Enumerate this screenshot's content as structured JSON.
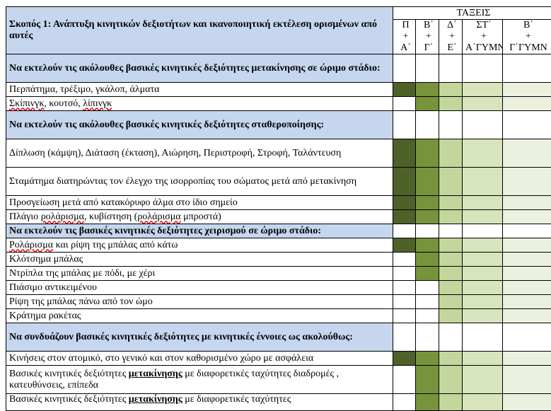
{
  "table": {
    "title": "Σκοπός 1: Ανάπτυξη κινητικών δεξιοτήτων και ικανοποιητική εκτέλεση ορισμένων από αυτές",
    "classes_header": "ΤΑΞΕΙΣ",
    "grades": [
      {
        "l1": "Π",
        "l2": "+",
        "l3": "Α΄"
      },
      {
        "l1": "Β΄",
        "l2": "+",
        "l3": "Γ΄"
      },
      {
        "l1": "Δ΄",
        "l2": "+",
        "l3": "Ε΄"
      },
      {
        "l1": "ΣΤ΄",
        "l2": "+",
        "l3": "Α΄ΓΥΜΝ"
      },
      {
        "l1": "Β΄",
        "l2": "+",
        "l3": "Γ΄ΓΥΜΝ"
      }
    ],
    "sections": [
      {
        "heading": "Να εκτελούν τις ακόλουθες βασικές κινητικές δεξιότητες μετακίνησης σε ώριμο στάδιο:"
      },
      {
        "heading": "Να εκτελούν τις ακόλουθες βασικές κινητικές δεξιότητες σταθεροποίησης:"
      },
      {
        "heading": "Να εκτελούν τις βασικές κινητικές δεξιότητες χειρισμού σε ώριμο στάδιο:"
      },
      {
        "heading": "Να συνδυάζουν βασικές κινητικές δεξιότητες με κινητικές έννοιες ως ακολούθως:"
      }
    ],
    "rows": [
      {
        "text": "Περπάτημα, τρέξιμο, γκάλοπ, άλματα",
        "shades": [
          1,
          1,
          1,
          1,
          1
        ]
      },
      {
        "text_a": "Σκίπινγκ",
        "text_b": ", κουτσό, ",
        "text_c": "λίπινγκ",
        "shades": [
          0,
          1,
          1,
          1,
          1
        ]
      },
      {
        "text": "Δίπλωση (κάμψη), Διάταση (έκταση), Αιώρηση, Περιστροφή,  Στροφή, Ταλάντευση",
        "shades": [
          1,
          1,
          1,
          1,
          1
        ]
      },
      {
        "text": "Σταμάτημα διατηρώντας τον έλεγχο της ισορροπίας του σώματος μετά από μετακίνηση",
        "shades": [
          1,
          1,
          1,
          1,
          1
        ]
      },
      {
        "text": "Προσγείωση μετά από κατακόρυφο άλμα στο ίδιο σημείο",
        "shades": [
          1,
          1,
          1,
          1,
          1
        ]
      },
      {
        "text_a": "Πλάγιο ",
        "text_b": "ρολάρισμα",
        "text_c": ", κυβίστηση (",
        "text_d": "ρολάρισμα",
        "text_e": " μπροστά)",
        "shades": [
          1,
          1,
          1,
          1,
          1
        ]
      },
      {
        "text_a": "Ρολάρισμα",
        "text_b": " και ρίψη της μπάλας από κάτω",
        "shades": [
          1,
          1,
          1,
          1,
          1
        ]
      },
      {
        "text": "Κλότσημα μπάλας",
        "shades": [
          0,
          1,
          1,
          1,
          1
        ]
      },
      {
        "text": "Ντρίπλα της μπάλας με πόδι, με χέρι",
        "shades": [
          0,
          1,
          1,
          1,
          1
        ]
      },
      {
        "text": "Πιάσιμο αντικειμένου",
        "shades": [
          0,
          0,
          1,
          1,
          1
        ]
      },
      {
        "text": "Ρίψη της μπάλας πάνω από τον ώμο",
        "shades": [
          0,
          0,
          1,
          1,
          1
        ]
      },
      {
        "text": "Κράτημα ρακέτας",
        "shades": [
          0,
          0,
          1,
          1,
          1
        ]
      },
      {
        "text": "Κινήσεις στον ατομικό, στο γενικό και στον καθορισμένο χώρο με ασφάλεια",
        "shades": [
          1,
          1,
          1,
          1,
          1
        ]
      },
      {
        "text_a": "Βασικές κινητικές δεξιότητες ",
        "text_b": "μετακίνησης",
        "text_c": "  με διαφορετικές ταχύτητες διαδρομές , κατευθύνσεις, επίπεδα",
        "shades": [
          0,
          1,
          1,
          1,
          1
        ]
      },
      {
        "text_a": "Βασικές κινητικές δεξιότητες ",
        "text_b": "μετακίνησης",
        "text_c": "  με διαφορετικές ταχύτητες",
        "shades": [
          0,
          1,
          1,
          1,
          1
        ]
      }
    ],
    "colors": {
      "c1": "#4e6128",
      "c2": "#77933c",
      "c3": "#c3d69b",
      "c4": "#d7e4bd",
      "c5": "#ebf1de",
      "heading_bg": "#c5d6ee"
    }
  }
}
